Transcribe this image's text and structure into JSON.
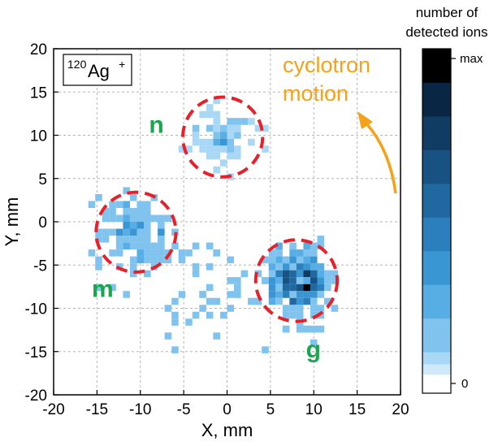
{
  "chart_data": {
    "type": "heatmap",
    "title": "",
    "xlabel": "X, mm",
    "ylabel": "Y, mm",
    "xlim": [
      -20,
      20
    ],
    "ylim": [
      -20,
      20
    ],
    "x_ticks": [
      -20,
      -15,
      -10,
      -5,
      0,
      5,
      10,
      15,
      20
    ],
    "y_ticks": [
      -20,
      -15,
      -10,
      -5,
      0,
      5,
      10,
      15,
      20
    ],
    "grid": true,
    "isotope_label": {
      "mass": "120",
      "symbol": "Ag",
      "charge": "+"
    },
    "annotation": "cyclotron\nmotion",
    "colorbar": {
      "title_line1": "number of",
      "title_line2": "detected ions",
      "max_label": "max",
      "min_label": "0",
      "colors": [
        "#ffffff",
        "#cfe9fb",
        "#a8d8f5",
        "#7fc3ee",
        "#56aee4",
        "#3a96d3",
        "#2a7fbc",
        "#1f68a0",
        "#175283",
        "#103c63",
        "#092744",
        "#000000"
      ]
    },
    "clusters": [
      {
        "label": "n",
        "center": [
          -0.5,
          9.8
        ],
        "circle_radius": 4.6,
        "spread": 1.8,
        "counts": 70,
        "peak": 0.35
      },
      {
        "label": "m",
        "center": [
          -10.5,
          -1.2
        ],
        "circle_radius": 4.6,
        "spread": 2.3,
        "counts": 130,
        "peak": 0.35
      },
      {
        "label": "g",
        "center": [
          8,
          -6.8
        ],
        "circle_radius": 4.7,
        "spread": 1.7,
        "counts": 380,
        "peak": 1.0
      }
    ]
  }
}
